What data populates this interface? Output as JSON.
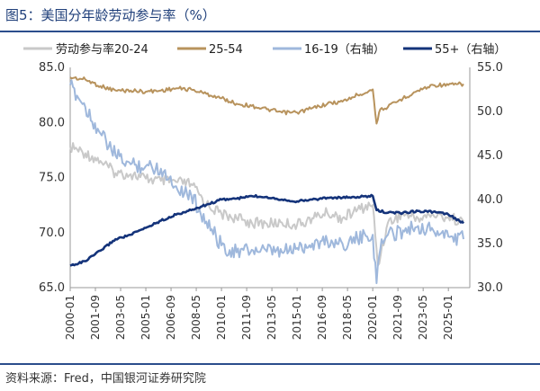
{
  "header": {
    "title": "图5：美国分年龄劳动参与率（%）"
  },
  "footer": {
    "source": "资料来源：Fred，中国银河证券研究院"
  },
  "chart_data": {
    "type": "line",
    "x_ticks": [
      "2000-01",
      "2001-09",
      "2003-05",
      "2005-01",
      "2006-09",
      "2008-05",
      "2010-01",
      "2011-09",
      "2013-05",
      "2015-01",
      "2016-09",
      "2018-05",
      "2020-01",
      "2021-09",
      "2023-05",
      "2025-01"
    ],
    "x_range": [
      "2000-01",
      "2026-06"
    ],
    "y_left": {
      "range": [
        65,
        85
      ],
      "ticks": [
        "65.0",
        "70.0",
        "75.0",
        "80.0",
        "85.0"
      ]
    },
    "y_right": {
      "range": [
        30,
        55
      ],
      "ticks": [
        "30.0",
        "35.0",
        "40.0",
        "45.0",
        "50.0",
        "55.0"
      ]
    },
    "legend_position": "top",
    "series": [
      {
        "name": "劳动参与率20-24",
        "axis": "left",
        "color": "#c9c9c9",
        "points": [
          [
            "2000-01",
            77.8
          ],
          [
            "2001-01",
            77.2
          ],
          [
            "2002-01",
            76.5
          ],
          [
            "2003-01",
            75.4
          ],
          [
            "2004-01",
            75.3
          ],
          [
            "2005-01",
            74.9
          ],
          [
            "2006-01",
            74.7
          ],
          [
            "2007-01",
            74.6
          ],
          [
            "2008-01",
            74.4
          ],
          [
            "2009-01",
            72.6
          ],
          [
            "2010-01",
            71.7
          ],
          [
            "2011-01",
            71.3
          ],
          [
            "2012-01",
            70.9
          ],
          [
            "2013-01",
            70.8
          ],
          [
            "2014-01",
            70.9
          ],
          [
            "2015-01",
            70.7
          ],
          [
            "2016-01",
            71.3
          ],
          [
            "2017-01",
            71.8
          ],
          [
            "2018-01",
            71.3
          ],
          [
            "2019-01",
            72.1
          ],
          [
            "2020-01",
            72.5
          ],
          [
            "2020-05",
            67.0
          ],
          [
            "2021-01",
            70.9
          ],
          [
            "2022-01",
            71.7
          ],
          [
            "2023-01",
            71.3
          ],
          [
            "2024-01",
            71.6
          ],
          [
            "2025-01",
            71.4
          ],
          [
            "2026-01",
            71.0
          ]
        ]
      },
      {
        "name": "25-54",
        "axis": "left",
        "color": "#b8935d",
        "points": [
          [
            "2000-01",
            84.1
          ],
          [
            "2001-01",
            83.9
          ],
          [
            "2002-01",
            83.3
          ],
          [
            "2003-01",
            82.9
          ],
          [
            "2004-01",
            82.9
          ],
          [
            "2005-01",
            82.8
          ],
          [
            "2006-01",
            82.9
          ],
          [
            "2007-01",
            83.1
          ],
          [
            "2008-01",
            83.0
          ],
          [
            "2009-01",
            82.6
          ],
          [
            "2010-01",
            82.2
          ],
          [
            "2011-01",
            81.7
          ],
          [
            "2012-01",
            81.5
          ],
          [
            "2013-01",
            81.2
          ],
          [
            "2014-01",
            80.9
          ],
          [
            "2015-01",
            80.9
          ],
          [
            "2016-01",
            81.3
          ],
          [
            "2017-01",
            81.7
          ],
          [
            "2018-01",
            81.9
          ],
          [
            "2019-01",
            82.5
          ],
          [
            "2020-01",
            83.0
          ],
          [
            "2020-04",
            79.9
          ],
          [
            "2020-07",
            81.2
          ],
          [
            "2021-01",
            81.4
          ],
          [
            "2022-01",
            82.2
          ],
          [
            "2023-01",
            82.9
          ],
          [
            "2024-01",
            83.4
          ],
          [
            "2025-01",
            83.4
          ],
          [
            "2026-01",
            83.5
          ]
        ]
      },
      {
        "name": "16-19（右轴）",
        "axis": "right",
        "color": "#9fb8dc",
        "points": [
          [
            "2000-01",
            53.0
          ],
          [
            "2001-01",
            50.5
          ],
          [
            "2002-01",
            47.5
          ],
          [
            "2003-01",
            45.0
          ],
          [
            "2004-01",
            44.0
          ],
          [
            "2005-01",
            43.8
          ],
          [
            "2006-01",
            43.5
          ],
          [
            "2007-01",
            41.5
          ],
          [
            "2008-01",
            40.5
          ],
          [
            "2009-01",
            37.5
          ],
          [
            "2010-01",
            34.8
          ],
          [
            "2011-01",
            34.0
          ],
          [
            "2012-01",
            34.3
          ],
          [
            "2013-01",
            34.1
          ],
          [
            "2014-01",
            34.0
          ],
          [
            "2015-01",
            34.5
          ],
          [
            "2016-01",
            35.0
          ],
          [
            "2017-01",
            35.3
          ],
          [
            "2018-01",
            35.0
          ],
          [
            "2019-01",
            35.5
          ],
          [
            "2020-01",
            36.0
          ],
          [
            "2020-04",
            30.5
          ],
          [
            "2020-08",
            35.5
          ],
          [
            "2021-01",
            36.0
          ],
          [
            "2022-01",
            36.5
          ],
          [
            "2023-01",
            37.0
          ],
          [
            "2024-01",
            36.5
          ],
          [
            "2025-01",
            35.8
          ],
          [
            "2026-01",
            35.5
          ]
        ]
      },
      {
        "name": "55+（右轴）",
        "axis": "right",
        "color": "#14337a",
        "points": [
          [
            "2000-01",
            32.5
          ],
          [
            "2001-01",
            33.0
          ],
          [
            "2002-01",
            34.2
          ],
          [
            "2003-01",
            35.5
          ],
          [
            "2004-01",
            36.0
          ],
          [
            "2005-01",
            36.8
          ],
          [
            "2006-01",
            37.6
          ],
          [
            "2007-01",
            38.3
          ],
          [
            "2008-01",
            38.8
          ],
          [
            "2009-01",
            39.4
          ],
          [
            "2010-01",
            40.0
          ],
          [
            "2011-01",
            40.1
          ],
          [
            "2012-01",
            40.4
          ],
          [
            "2013-01",
            40.3
          ],
          [
            "2014-01",
            40.0
          ],
          [
            "2015-01",
            39.8
          ],
          [
            "2016-01",
            40.0
          ],
          [
            "2017-01",
            40.2
          ],
          [
            "2018-01",
            40.2
          ],
          [
            "2019-01",
            40.3
          ],
          [
            "2020-01",
            40.4
          ],
          [
            "2020-04",
            38.8
          ],
          [
            "2021-01",
            38.5
          ],
          [
            "2022-01",
            38.5
          ],
          [
            "2023-01",
            38.7
          ],
          [
            "2024-01",
            38.6
          ],
          [
            "2025-01",
            38.3
          ],
          [
            "2026-01",
            37.3
          ]
        ]
      }
    ]
  }
}
